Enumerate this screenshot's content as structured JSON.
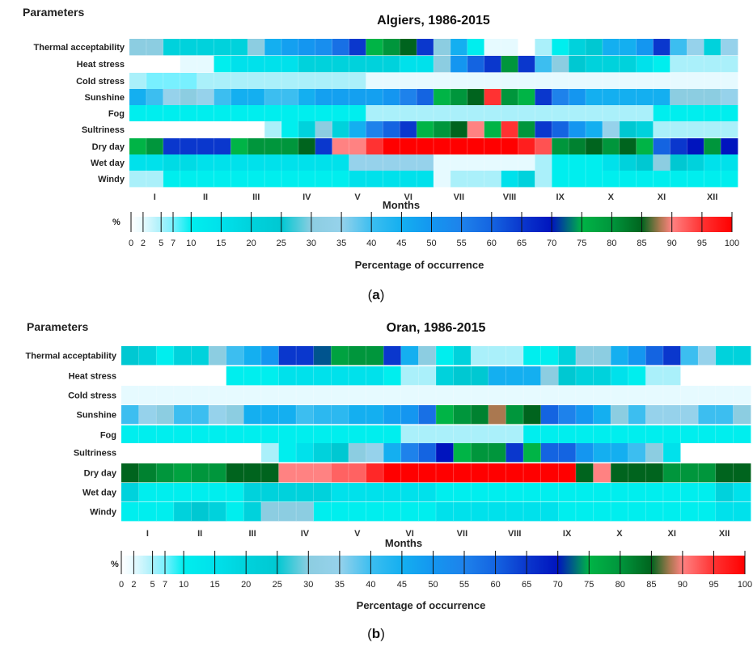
{
  "chart_data": [
    {
      "type": "heatmap",
      "panel_label": "a",
      "title": "Algiers, 1986-2015",
      "header": "Parameters",
      "xlabel": "Months",
      "colorbar_unit": "%",
      "colorbar_label": "Percentage of occurrence",
      "colorbar_ticks": [
        0,
        2,
        5,
        7,
        10,
        15,
        20,
        25,
        30,
        35,
        40,
        45,
        50,
        55,
        60,
        65,
        70,
        75,
        80,
        85,
        90,
        95,
        100
      ],
      "value_range": [
        0,
        100
      ],
      "months": [
        "I",
        "II",
        "III",
        "IV",
        "V",
        "VI",
        "VII",
        "VIII",
        "IX",
        "X",
        "XI",
        "XII"
      ],
      "columns_per_month": 3,
      "parameters": [
        "Thermal acceptability",
        "Heat stress",
        "Cold stress",
        "Sunshine",
        "Fog",
        "Sultriness",
        "Dry day",
        "Wet day",
        "Windy"
      ],
      "values": [
        [
          30,
          30,
          20,
          20,
          20,
          20,
          20,
          30,
          45,
          48,
          50,
          52,
          58,
          65,
          75,
          80,
          85,
          65,
          30,
          45,
          10,
          2,
          2,
          0,
          5,
          10,
          20,
          25,
          45,
          45,
          50,
          65,
          40,
          35,
          20,
          35
        ],
        [
          0,
          0,
          0,
          2,
          2,
          10,
          15,
          15,
          15,
          15,
          20,
          20,
          20,
          20,
          20,
          20,
          15,
          15,
          30,
          50,
          60,
          65,
          80,
          65,
          40,
          30,
          25,
          20,
          20,
          20,
          15,
          10,
          5,
          5,
          5,
          5
        ],
        [
          5,
          7,
          7,
          7,
          5,
          5,
          5,
          5,
          5,
          5,
          5,
          5,
          5,
          5,
          2,
          2,
          2,
          2,
          2,
          2,
          2,
          2,
          2,
          2,
          2,
          2,
          2,
          2,
          2,
          2,
          2,
          2,
          2,
          2,
          2,
          2
        ],
        [
          45,
          40,
          35,
          30,
          35,
          40,
          45,
          45,
          40,
          40,
          45,
          48,
          48,
          48,
          48,
          50,
          55,
          60,
          75,
          80,
          85,
          95,
          80,
          75,
          65,
          55,
          50,
          45,
          45,
          45,
          45,
          45,
          30,
          30,
          30,
          35
        ],
        [
          10,
          10,
          10,
          10,
          10,
          10,
          10,
          10,
          10,
          10,
          10,
          10,
          10,
          10,
          5,
          5,
          5,
          5,
          5,
          5,
          5,
          5,
          5,
          5,
          5,
          5,
          5,
          5,
          5,
          5,
          5,
          10,
          10,
          10,
          10,
          10
        ],
        [
          0,
          0,
          0,
          0,
          0,
          0,
          0,
          0,
          5,
          10,
          20,
          30,
          20,
          45,
          55,
          60,
          65,
          75,
          80,
          85,
          90,
          75,
          95,
          80,
          65,
          60,
          50,
          45,
          35,
          25,
          20,
          5,
          5,
          5,
          5,
          5
        ],
        [
          75,
          80,
          65,
          65,
          65,
          65,
          75,
          80,
          80,
          80,
          85,
          65,
          90,
          90,
          95,
          100,
          100,
          100,
          100,
          100,
          100,
          100,
          100,
          97,
          93,
          80,
          82,
          85,
          80,
          85,
          75,
          60,
          65,
          70,
          80,
          70
        ],
        [
          15,
          15,
          17,
          17,
          15,
          15,
          15,
          15,
          15,
          15,
          15,
          15,
          15,
          35,
          35,
          35,
          35,
          35,
          2,
          2,
          2,
          2,
          2,
          2,
          5,
          10,
          10,
          10,
          15,
          20,
          25,
          30,
          25,
          20,
          15,
          15
        ],
        [
          5,
          5,
          10,
          10,
          10,
          10,
          10,
          10,
          10,
          10,
          10,
          10,
          10,
          15,
          15,
          15,
          15,
          15,
          2,
          5,
          5,
          5,
          15,
          20,
          5,
          10,
          10,
          10,
          10,
          10,
          10,
          10,
          10,
          10,
          10,
          10
        ]
      ]
    },
    {
      "type": "heatmap",
      "panel_label": "b",
      "title": "Oran, 1986-2015",
      "header": "Parameters",
      "xlabel": "Months",
      "colorbar_unit": "%",
      "colorbar_label": "Percentage of occurrence",
      "colorbar_ticks": [
        0,
        2,
        5,
        7,
        10,
        15,
        20,
        25,
        30,
        35,
        40,
        45,
        50,
        55,
        60,
        65,
        70,
        75,
        80,
        85,
        90,
        95,
        100
      ],
      "value_range": [
        0,
        100
      ],
      "months": [
        "I",
        "II",
        "III",
        "IV",
        "V",
        "VI",
        "VII",
        "VIII",
        "IX",
        "X",
        "XI",
        "XII"
      ],
      "columns_per_month": 3,
      "parameters": [
        "Thermal acceptability",
        "Heat stress",
        "Cold stress",
        "Sunshine",
        "Fog",
        "Sultriness",
        "Dry day",
        "Wet day",
        "Windy"
      ],
      "values": [
        [
          25,
          20,
          10,
          20,
          20,
          30,
          40,
          45,
          50,
          65,
          65,
          72,
          78,
          80,
          80,
          65,
          45,
          30,
          10,
          20,
          5,
          5,
          5,
          10,
          10,
          20,
          30,
          30,
          45,
          50,
          60,
          65,
          40,
          35,
          20,
          20
        ],
        [
          0,
          0,
          0,
          0,
          0,
          0,
          10,
          10,
          10,
          15,
          15,
          15,
          15,
          15,
          15,
          10,
          5,
          5,
          20,
          25,
          25,
          45,
          45,
          45,
          30,
          25,
          20,
          20,
          15,
          10,
          5,
          5,
          0,
          0,
          0,
          0
        ],
        [
          2,
          2,
          2,
          2,
          2,
          2,
          2,
          2,
          2,
          2,
          2,
          2,
          2,
          2,
          2,
          2,
          2,
          2,
          2,
          2,
          2,
          2,
          2,
          2,
          2,
          2,
          2,
          2,
          2,
          2,
          2,
          2,
          2,
          2,
          2,
          2
        ],
        [
          40,
          35,
          30,
          40,
          40,
          35,
          30,
          45,
          45,
          45,
          40,
          42,
          42,
          45,
          45,
          48,
          50,
          58,
          75,
          80,
          82,
          88,
          80,
          85,
          60,
          55,
          50,
          45,
          30,
          40,
          35,
          35,
          35,
          40,
          40,
          30
        ],
        [
          10,
          10,
          10,
          10,
          10,
          10,
          10,
          10,
          10,
          10,
          10,
          10,
          10,
          10,
          10,
          10,
          5,
          5,
          5,
          5,
          5,
          5,
          5,
          10,
          10,
          10,
          10,
          10,
          10,
          10,
          10,
          10,
          10,
          10,
          10,
          10
        ],
        [
          0,
          0,
          0,
          0,
          0,
          0,
          0,
          0,
          5,
          10,
          15,
          20,
          25,
          30,
          35,
          45,
          55,
          60,
          70,
          75,
          80,
          80,
          65,
          75,
          60,
          60,
          50,
          45,
          45,
          40,
          30,
          15,
          0,
          0,
          0,
          0
        ],
        [
          85,
          82,
          80,
          78,
          80,
          80,
          85,
          85,
          85,
          90,
          90,
          90,
          92,
          92,
          96,
          100,
          100,
          100,
          100,
          100,
          100,
          100,
          100,
          100,
          100,
          100,
          85,
          90,
          85,
          85,
          85,
          80,
          80,
          80,
          85,
          85
        ],
        [
          20,
          10,
          10,
          10,
          10,
          10,
          10,
          20,
          20,
          20,
          20,
          20,
          15,
          15,
          15,
          15,
          15,
          15,
          10,
          10,
          10,
          10,
          10,
          10,
          10,
          10,
          10,
          10,
          10,
          10,
          10,
          10,
          10,
          10,
          20,
          15
        ],
        [
          10,
          10,
          10,
          20,
          25,
          20,
          10,
          20,
          30,
          30,
          30,
          10,
          10,
          10,
          10,
          10,
          10,
          10,
          15,
          15,
          15,
          15,
          15,
          15,
          15,
          10,
          10,
          10,
          10,
          10,
          10,
          10,
          10,
          10,
          15,
          15
        ]
      ]
    }
  ]
}
